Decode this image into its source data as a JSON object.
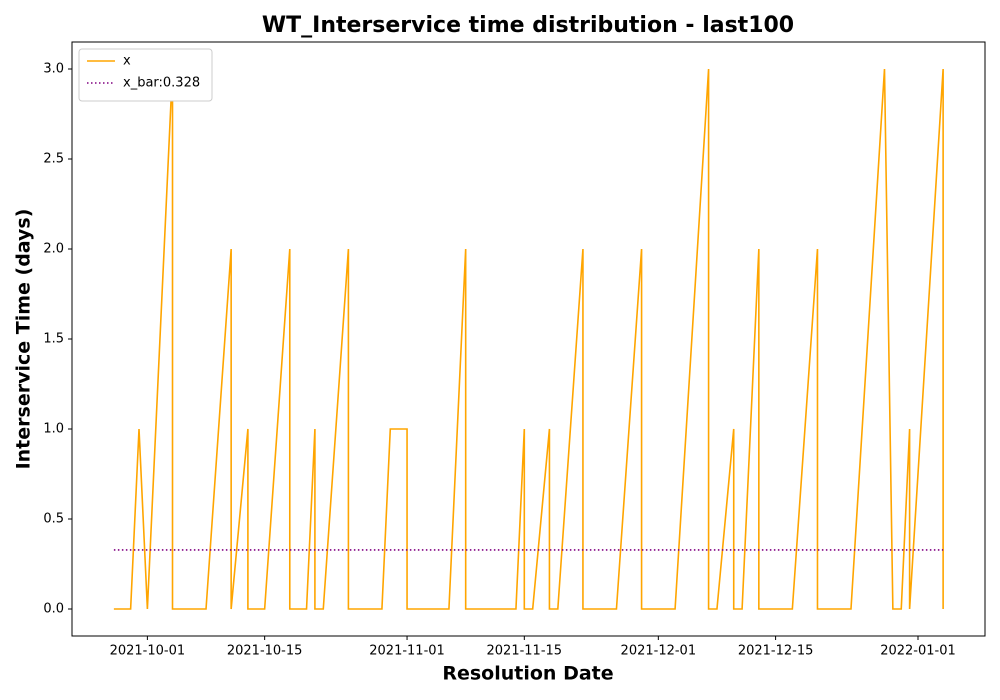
{
  "chart_data": {
    "type": "line",
    "title": "WT_Interservice time distribution - last100",
    "x_label": "Resolution Date",
    "y_label": "Interservice Time (days)",
    "x": [
      "2021-09-27",
      "2021-09-29",
      "2021-09-30",
      "2021-10-01",
      "2021-10-04",
      "2021-10-04",
      "2021-10-08",
      "2021-10-11",
      "2021-10-11",
      "2021-10-13",
      "2021-10-13",
      "2021-10-15",
      "2021-10-18",
      "2021-10-18",
      "2021-10-20",
      "2021-10-21",
      "2021-10-21",
      "2021-10-22",
      "2021-10-25",
      "2021-10-25",
      "2021-10-29",
      "2021-10-30",
      "2021-11-01",
      "2021-11-01",
      "2021-11-06",
      "2021-11-08",
      "2021-11-08",
      "2021-11-14",
      "2021-11-15",
      "2021-11-15",
      "2021-11-16",
      "2021-11-18",
      "2021-11-18",
      "2021-11-19",
      "2021-11-22",
      "2021-11-22",
      "2021-11-26",
      "2021-11-29",
      "2021-11-29",
      "2021-12-03",
      "2021-12-07",
      "2021-12-07",
      "2021-12-08",
      "2021-12-10",
      "2021-12-10",
      "2021-12-11",
      "2021-12-13",
      "2021-12-13",
      "2021-12-17",
      "2021-12-20",
      "2021-12-20",
      "2021-12-24",
      "2021-12-28",
      "2021-12-29",
      "2021-12-30",
      "2021-12-31",
      "2021-12-31",
      "2022-01-04",
      "2022-01-04"
    ],
    "series": [
      {
        "name": "x",
        "color": "#ffa500",
        "values": [
          0,
          0,
          1,
          0,
          3,
          0,
          0,
          2,
          0,
          1,
          0,
          0,
          2,
          0,
          0,
          1,
          0,
          0,
          2,
          0,
          0,
          1,
          1,
          0,
          0,
          2,
          0,
          0,
          1,
          0,
          0,
          1,
          0,
          0,
          2,
          0,
          0,
          2,
          0,
          0,
          3,
          0,
          0,
          1,
          0,
          0,
          2,
          0,
          0,
          2,
          0,
          0,
          3,
          0,
          0,
          1,
          0,
          3,
          0
        ]
      }
    ],
    "mean_line": {
      "name": "x_bar:0.328",
      "value": 0.328,
      "color": "#800080"
    },
    "xlim": [
      "2021-09-22",
      "2022-01-09"
    ],
    "xticks": [
      "2021-10-01",
      "2021-10-15",
      "2021-11-01",
      "2021-11-15",
      "2021-12-01",
      "2021-12-15",
      "2022-01-01"
    ],
    "ylim": [
      -0.15,
      3.15
    ],
    "yticks": [
      {
        "value": 0,
        "label": "0.0"
      },
      {
        "value": 0.5,
        "label": "0.5"
      },
      {
        "value": 1,
        "label": "1.0"
      },
      {
        "value": 1.5,
        "label": "1.5"
      },
      {
        "value": 2,
        "label": "2.0"
      },
      {
        "value": 2.5,
        "label": "2.5"
      },
      {
        "value": 3,
        "label": "3.0"
      }
    ],
    "legend": "upper left"
  }
}
